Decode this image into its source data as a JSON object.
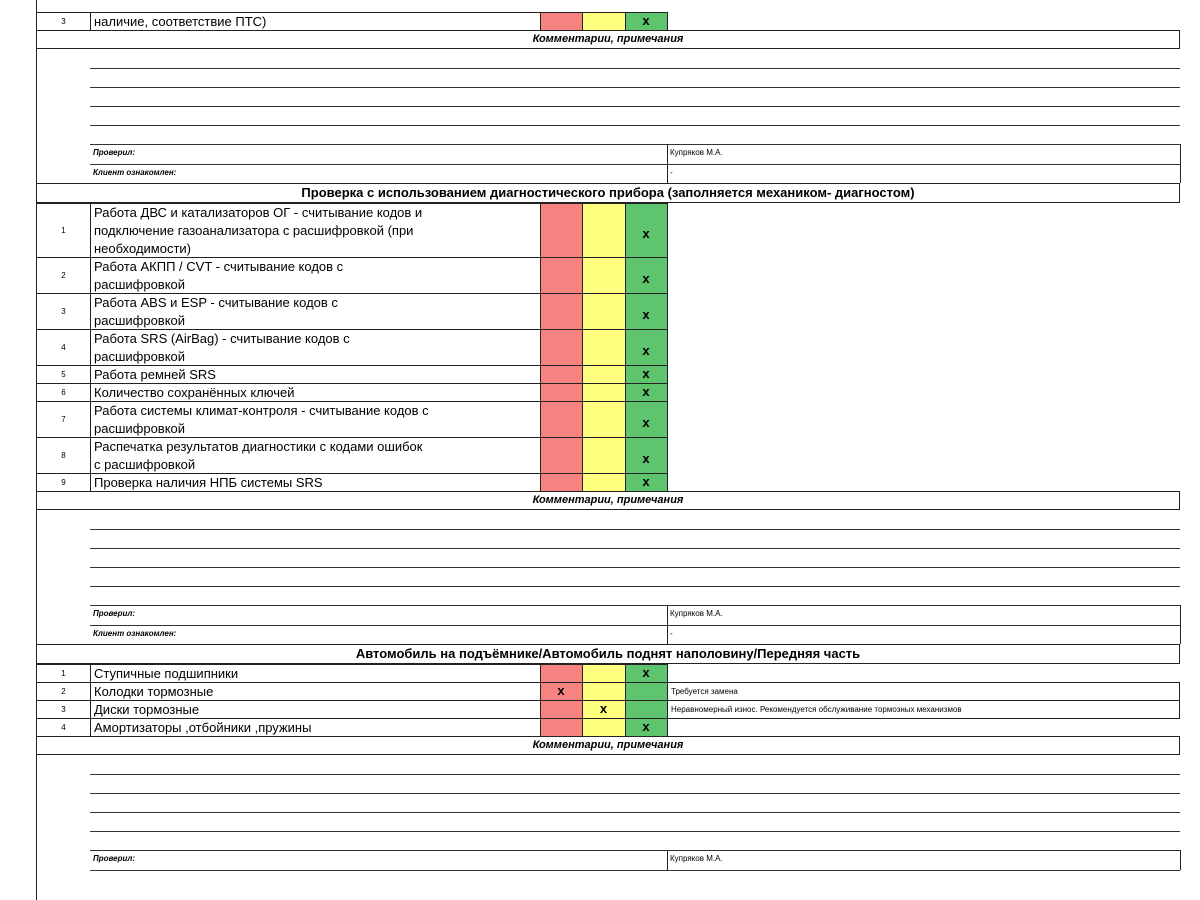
{
  "sections": [
    {
      "rows": [
        {
          "num": "3",
          "text": [
            "наличие, соответствие ПТС)"
          ],
          "check": "x",
          "status": "green"
        }
      ],
      "comments_title": "Комментарии, примечания",
      "checked_label": "Проверил:",
      "checked_by": "Купряков М.А.",
      "client_label": "Клиент ознакомлен:",
      "client_value": "-"
    },
    {
      "title": "Проверка с использованием диагностического прибора (заполняется механиком- диагностом)",
      "rows": [
        {
          "num": "1",
          "text": [
            "Работа ДВС и катализаторов ОГ - считывание кодов и",
            "подключение газоанализатора с расшифровкой (при",
            "необходимости)"
          ],
          "check": "x",
          "status": "green"
        },
        {
          "num": "2",
          "text": [
            "Работа АКПП / CVT - считывание кодов с",
            "расшифровкой"
          ],
          "check": "x",
          "status": "green"
        },
        {
          "num": "3",
          "text": [
            "Работа ABS и ESP - считывание кодов с",
            "расшифровкой"
          ],
          "check": "x",
          "status": "green"
        },
        {
          "num": "4",
          "text": [
            "Работа SRS (AirBag) - считывание кодов с",
            "расшифровкой"
          ],
          "check": "x",
          "status": "green"
        },
        {
          "num": "5",
          "text": [
            "Работа ремней SRS"
          ],
          "check": "x",
          "status": "green"
        },
        {
          "num": "6",
          "text": [
            "Количество сохранённых ключей"
          ],
          "check": "x",
          "status": "green"
        },
        {
          "num": "7",
          "text": [
            "Работа системы климат-контроля - считывание кодов с",
            "расшифровкой"
          ],
          "check": "x",
          "status": "green"
        },
        {
          "num": "8",
          "text": [
            "Распечатка результатов диагностики с кодами ошибок",
            "с расшифровкой"
          ],
          "check": "x",
          "status": "green"
        },
        {
          "num": "9",
          "text": [
            "Проверка наличия НПБ системы SRS"
          ],
          "check": "x",
          "status": "green"
        }
      ],
      "comments_title": "Комментарии, примечания",
      "checked_label": "Проверил:",
      "checked_by": "Купряков М.А.",
      "client_label": "Клиент ознакомлен:",
      "client_value": "-"
    },
    {
      "title": "Автомобиль на подъёмнике/Автомобиль поднят наполовину/Передняя часть",
      "rows": [
        {
          "num": "1",
          "text": [
            "Ступичные подшипники"
          ],
          "check": "x",
          "status": "green"
        },
        {
          "num": "2",
          "text": [
            "Колодки тормозные"
          ],
          "check": "x",
          "status": "red",
          "note": "Требуется замена"
        },
        {
          "num": "3",
          "text": [
            "Диски тормозные"
          ],
          "check": "x",
          "status": "yellow",
          "note": "Неравномерный износ. Рекомендуется обслуживание тормозных механизмов"
        },
        {
          "num": "4",
          "text": [
            "Амортизаторы ,отбойники ,пружины"
          ],
          "check": "x",
          "status": "green"
        }
      ],
      "comments_title": "Комментарии, примечания",
      "checked_label": "Проверил:",
      "checked_by": "Купряков М.А."
    }
  ]
}
